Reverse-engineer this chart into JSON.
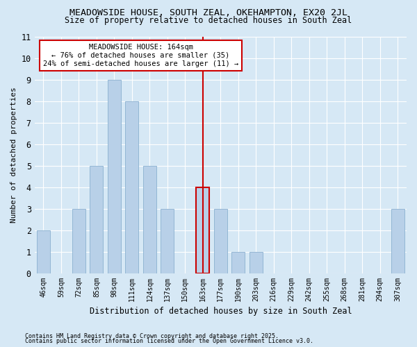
{
  "title": "MEADOWSIDE HOUSE, SOUTH ZEAL, OKEHAMPTON, EX20 2JL",
  "subtitle": "Size of property relative to detached houses in South Zeal",
  "xlabel": "Distribution of detached houses by size in South Zeal",
  "ylabel": "Number of detached properties",
  "categories": [
    "46sqm",
    "59sqm",
    "72sqm",
    "85sqm",
    "98sqm",
    "111sqm",
    "124sqm",
    "137sqm",
    "150sqm",
    "163sqm",
    "177sqm",
    "190sqm",
    "203sqm",
    "216sqm",
    "229sqm",
    "242sqm",
    "255sqm",
    "268sqm",
    "281sqm",
    "294sqm",
    "307sqm"
  ],
  "values": [
    2,
    0,
    3,
    5,
    9,
    8,
    5,
    3,
    0,
    4,
    3,
    1,
    1,
    0,
    0,
    0,
    0,
    0,
    0,
    0,
    3
  ],
  "highlight_index": 9,
  "highlight_color": "#cc0000",
  "bar_color": "#b8d0e8",
  "bar_edge_color": "#8ab0d0",
  "ylim": [
    0,
    11
  ],
  "yticks": [
    0,
    1,
    2,
    3,
    4,
    5,
    6,
    7,
    8,
    9,
    10,
    11
  ],
  "annotation_title": "MEADOWSIDE HOUSE: 164sqm",
  "annotation_line1": "← 76% of detached houses are smaller (35)",
  "annotation_line2": "24% of semi-detached houses are larger (11) →",
  "footer1": "Contains HM Land Registry data © Crown copyright and database right 2025.",
  "footer2": "Contains public sector information licensed under the Open Government Licence v3.0.",
  "bg_color": "#d6e8f5",
  "plot_bg_color": "#d6e8f5",
  "grid_color": "#ffffff",
  "annotation_box_color": "#ffffff",
  "annotation_border_color": "#cc0000",
  "vline_color": "#cc0000",
  "vline_index": 9,
  "bar_width": 0.75
}
